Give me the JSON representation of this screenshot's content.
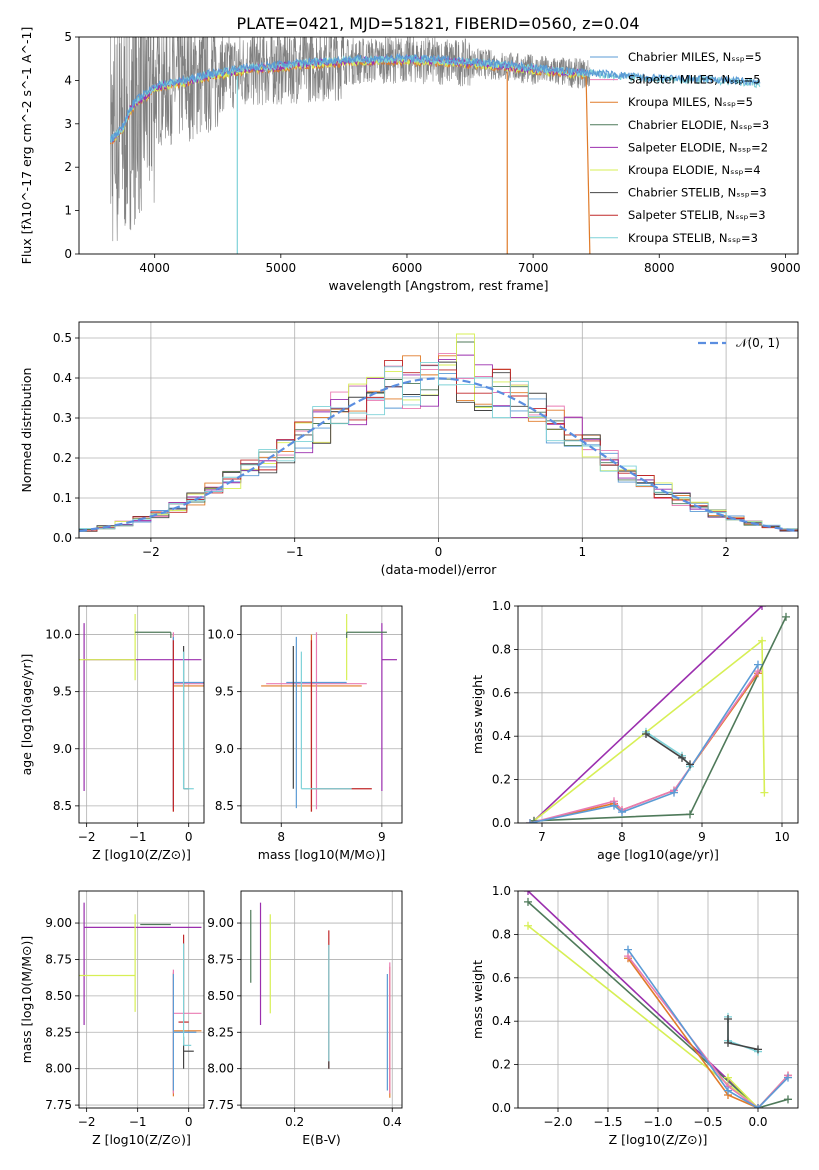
{
  "figure": {
    "title": "PLATE=0421, MJD=51821, FIBERID=0560, z=0.04"
  },
  "colors": {
    "chabrier_miles": "#5b9bd5",
    "salpeter_miles": "#e97bb3",
    "kroupa_miles": "#e07b2a",
    "chabrier_elodie": "#4f7a5a",
    "salpeter_elodie": "#9b2fae",
    "kroupa_elodie": "#d7ef55",
    "chabrier_stelib": "#444444",
    "salpeter_stelib": "#c0282a",
    "kroupa_stelib": "#7fd2d8",
    "observed": "#808080",
    "normal": "#5b8ee0",
    "grid": "#b0b0b0"
  },
  "chart_data": [
    {
      "id": "spectrum",
      "type": "line",
      "xlabel": "wavelength [Angstrom, rest frame]",
      "ylabel": "Flux [fλ10^-17 erg cm^-2 s^-1 A^-1]",
      "xlim": [
        3400,
        9100
      ],
      "ylim": [
        0,
        5
      ],
      "xticks": [
        4000,
        5000,
        6000,
        7000,
        8000,
        9000
      ],
      "yticks": [
        0,
        1,
        2,
        3,
        4,
        5
      ],
      "grid": false,
      "legend_position": "top-right",
      "legend": [
        {
          "label": "Chabrier MILES, N_SSP=5",
          "color_key": "chabrier_miles"
        },
        {
          "label": "Salpeter MILES, N_SSP=5",
          "color_key": "salpeter_miles"
        },
        {
          "label": "Kroupa MILES, N_SSP=5",
          "color_key": "kroupa_miles"
        },
        {
          "label": "Chabrier ELODIE, N_SSP=3",
          "color_key": "chabrier_elodie"
        },
        {
          "label": "Salpeter ELODIE, N_SSP=2",
          "color_key": "salpeter_elodie"
        },
        {
          "label": "Kroupa ELODIE, N_SSP=4",
          "color_key": "kroupa_elodie"
        },
        {
          "label": "Chabrier STELIB, N_SSP=3",
          "color_key": "chabrier_stelib"
        },
        {
          "label": "Salpeter STELIB, N_SSP=3",
          "color_key": "salpeter_stelib"
        },
        {
          "label": "Kroupa STELIB, N_SSP=3",
          "color_key": "kroupa_stelib"
        }
      ],
      "model_curve": {
        "x": [
          3650,
          3700,
          3750,
          3800,
          3850,
          3900,
          3950,
          4000,
          4100,
          4200,
          4300,
          4400,
          4500,
          4600,
          4700,
          4800,
          4900,
          5000,
          5200,
          5400,
          5600,
          5800,
          6000,
          6200,
          6400,
          6600,
          6800,
          7000,
          7200,
          7400,
          7600,
          7800,
          8000,
          8200,
          8400,
          8600,
          8800
        ],
        "y": [
          2.6,
          2.75,
          2.9,
          3.3,
          3.5,
          3.6,
          3.7,
          3.85,
          3.9,
          3.95,
          4.0,
          4.1,
          4.15,
          4.2,
          4.25,
          4.28,
          4.3,
          4.33,
          4.38,
          4.42,
          4.45,
          4.47,
          4.48,
          4.45,
          4.42,
          4.38,
          4.32,
          4.25,
          4.2,
          4.15,
          4.1,
          4.05,
          4.0,
          4.0,
          3.98,
          3.95,
          3.9
        ]
      }
    },
    {
      "id": "residuals",
      "type": "histogram",
      "xlabel": "(data-model)/error",
      "ylabel": "Normed distribution",
      "xlim": [
        -2.5,
        2.5
      ],
      "ylim": [
        0,
        0.54
      ],
      "xticks": [
        -2,
        -1,
        0,
        1,
        2
      ],
      "yticks": [
        0.0,
        0.1,
        0.2,
        0.3,
        0.4,
        0.5
      ],
      "grid": true,
      "legend_position": "top-right",
      "legend": [
        {
          "label": "N(0,1)",
          "color_key": "normal"
        }
      ],
      "bin_width": 0.125,
      "x_start": -2.5
    },
    {
      "id": "age_vs_Z",
      "type": "errorbar",
      "xlabel": "Z [log10(Z/Z⊙)]",
      "ylabel": "age [log10(age/yr)]",
      "xlim": [
        -2.15,
        0.3
      ],
      "ylim": [
        8.35,
        10.25
      ],
      "xticks": [
        -2,
        -1,
        0
      ],
      "yticks": [
        8.5,
        9.0,
        9.5,
        10.0
      ],
      "grid": true,
      "series": [
        {
          "color_key": "salpeter_elodie",
          "x": -2.05,
          "y": 9.78,
          "xerr": [
            0.0,
            2.3
          ],
          "yerr": [
            1.15,
            0.32
          ]
        },
        {
          "color_key": "kroupa_elodie",
          "x": -1.05,
          "y": 9.78,
          "xerr": [
            1.1,
            0.0
          ],
          "yerr": [
            0.18,
            0.4
          ]
        },
        {
          "color_key": "chabrier_elodie",
          "x": -0.35,
          "y": 10.02,
          "xerr": [
            0.7,
            0.0
          ],
          "yerr": [
            0.05,
            0.0
          ]
        },
        {
          "color_key": "kroupa_miles",
          "x": -0.3,
          "y": 9.55,
          "xerr": [
            0.0,
            0.6
          ],
          "yerr": [
            1.1,
            0.45
          ]
        },
        {
          "color_key": "salpeter_miles",
          "x": -0.3,
          "y": 9.57,
          "xerr": [
            0.0,
            0.6
          ],
          "yerr": [
            1.1,
            0.45
          ]
        },
        {
          "color_key": "chabrier_miles",
          "x": -0.3,
          "y": 9.58,
          "xerr": [
            0.0,
            0.6
          ],
          "yerr": [
            1.1,
            0.4
          ]
        },
        {
          "color_key": "salpeter_stelib",
          "x": -0.3,
          "y": 8.65,
          "xerr": [
            0.0,
            0.0
          ],
          "yerr": [
            0.2,
            1.3
          ]
        },
        {
          "color_key": "chabrier_stelib",
          "x": -0.1,
          "y": 8.65,
          "xerr": [
            0.0,
            0.1
          ],
          "yerr": [
            0.0,
            1.25
          ]
        },
        {
          "color_key": "kroupa_stelib",
          "x": -0.1,
          "y": 8.65,
          "xerr": [
            0.0,
            0.2
          ],
          "yerr": [
            0.0,
            1.2
          ]
        }
      ]
    },
    {
      "id": "age_vs_mass",
      "type": "errorbar",
      "xlabel": "mass [log10(M/M⊙)]",
      "ylabel": "",
      "xlim": [
        7.6,
        9.2
      ],
      "ylim": [
        8.35,
        10.25
      ],
      "xticks": [
        8,
        9
      ],
      "yticks": [
        8.5,
        9.0,
        9.5,
        10.0
      ],
      "grid": true,
      "series": [
        {
          "color_key": "salpeter_elodie",
          "x": 9.0,
          "y": 9.78,
          "xerr": [
            0.0,
            0.15
          ],
          "yerr": [
            1.15,
            0.32
          ]
        },
        {
          "color_key": "kroupa_elodie",
          "x": 8.65,
          "y": 9.78,
          "xerr": [
            0.0,
            0.0
          ],
          "yerr": [
            0.18,
            0.4
          ]
        },
        {
          "color_key": "chabrier_elodie",
          "x": 8.65,
          "y": 10.02,
          "xerr": [
            0.0,
            0.4
          ],
          "yerr": [
            0.05,
            0.0
          ]
        },
        {
          "color_key": "kroupa_miles",
          "x": 8.3,
          "y": 9.55,
          "xerr": [
            0.5,
            0.5
          ],
          "yerr": [
            1.1,
            0.45
          ]
        },
        {
          "color_key": "salpeter_miles",
          "x": 8.35,
          "y": 9.57,
          "xerr": [
            0.5,
            0.5
          ],
          "yerr": [
            1.1,
            0.45
          ]
        },
        {
          "color_key": "chabrier_miles",
          "x": 8.15,
          "y": 9.58,
          "xerr": [
            0.1,
            0.5
          ],
          "yerr": [
            1.1,
            0.4
          ]
        },
        {
          "color_key": "salpeter_stelib",
          "x": 8.3,
          "y": 8.65,
          "xerr": [
            0.0,
            0.6
          ],
          "yerr": [
            0.2,
            1.3
          ]
        },
        {
          "color_key": "chabrier_stelib",
          "x": 8.12,
          "y": 8.65,
          "xerr": [
            0.0,
            0.0
          ],
          "yerr": [
            0.0,
            1.25
          ]
        },
        {
          "color_key": "kroupa_stelib",
          "x": 8.2,
          "y": 8.65,
          "xerr": [
            0.0,
            0.5
          ],
          "yerr": [
            0.0,
            1.2
          ]
        }
      ]
    },
    {
      "id": "weight_vs_age",
      "type": "line",
      "xlabel": "age [log10(age/yr)]",
      "ylabel": "mass weight",
      "xlim": [
        6.7,
        10.2
      ],
      "ylim": [
        0,
        1.0
      ],
      "xticks": [
        7,
        8,
        9,
        10
      ],
      "yticks": [
        0.0,
        0.2,
        0.4,
        0.6,
        0.8,
        1.0
      ],
      "grid": true,
      "series": [
        {
          "color_key": "salpeter_elodie",
          "x": [
            6.9,
            9.75
          ],
          "y": [
            0.01,
            1.0
          ]
        },
        {
          "color_key": "kroupa_elodie",
          "x": [
            6.9,
            9.75,
            9.78
          ],
          "y": [
            0.01,
            0.84,
            0.14
          ]
        },
        {
          "color_key": "chabrier_elodie",
          "x": [
            6.9,
            8.85,
            10.05
          ],
          "y": [
            0.01,
            0.04,
            0.95
          ]
        },
        {
          "color_key": "kroupa_miles",
          "x": [
            6.85,
            7.9,
            8.0,
            8.65,
            9.7
          ],
          "y": [
            0.0,
            0.09,
            0.06,
            0.15,
            0.69
          ]
        },
        {
          "color_key": "salpeter_miles",
          "x": [
            6.85,
            7.9,
            8.0,
            8.65,
            9.7
          ],
          "y": [
            0.0,
            0.1,
            0.06,
            0.15,
            0.7
          ]
        },
        {
          "color_key": "chabrier_miles",
          "x": [
            6.85,
            7.9,
            8.0,
            8.65,
            9.7
          ],
          "y": [
            0.0,
            0.08,
            0.05,
            0.14,
            0.73
          ]
        },
        {
          "color_key": "kroupa_stelib",
          "x": [
            8.3,
            8.75,
            8.85
          ],
          "y": [
            0.42,
            0.31,
            0.26
          ]
        },
        {
          "color_key": "chabrier_stelib",
          "x": [
            8.3,
            8.75,
            8.85
          ],
          "y": [
            0.41,
            0.3,
            0.27
          ]
        }
      ]
    },
    {
      "id": "mass_vs_Z",
      "type": "errorbar",
      "xlabel": "Z [log10(Z/Z⊙)]",
      "ylabel": "mass [log10(M/M⊙)]",
      "xlim": [
        -2.15,
        0.3
      ],
      "ylim": [
        7.73,
        9.22
      ],
      "xticks": [
        -2,
        -1,
        0
      ],
      "yticks": [
        7.75,
        8.0,
        8.25,
        8.5,
        8.75,
        9.0
      ],
      "grid": true,
      "series": [
        {
          "color_key": "salpeter_elodie",
          "x": -2.05,
          "y": 8.97,
          "xerr": [
            0.0,
            2.3
          ],
          "yerr": [
            0.67,
            0.17
          ]
        },
        {
          "color_key": "kroupa_elodie",
          "x": -1.05,
          "y": 8.64,
          "xerr": [
            1.1,
            0.0
          ],
          "yerr": [
            0.25,
            0.42
          ]
        },
        {
          "color_key": "chabrier_elodie",
          "x": -0.95,
          "y": 8.99,
          "xerr": [
            0.0,
            0.6
          ],
          "yerr": [
            0.0,
            0.0
          ]
        },
        {
          "color_key": "kroupa_miles",
          "x": -0.3,
          "y": 8.26,
          "xerr": [
            0.0,
            0.55
          ],
          "yerr": [
            0.45,
            0.4
          ]
        },
        {
          "color_key": "salpeter_miles",
          "x": -0.3,
          "y": 8.38,
          "xerr": [
            0.0,
            0.55
          ],
          "yerr": [
            0.55,
            0.3
          ]
        },
        {
          "color_key": "chabrier_miles",
          "x": -0.3,
          "y": 8.25,
          "xerr": [
            0.0,
            0.45
          ],
          "yerr": [
            0.4,
            0.4
          ]
        },
        {
          "color_key": "salpeter_stelib",
          "x": -0.1,
          "y": 8.32,
          "xerr": [
            0.1,
            0.1
          ],
          "yerr": [
            0.0,
            0.6
          ]
        },
        {
          "color_key": "chabrier_stelib",
          "x": -0.1,
          "y": 8.12,
          "xerr": [
            0.0,
            0.2
          ],
          "yerr": [
            0.12,
            0.1
          ]
        },
        {
          "color_key": "kroupa_stelib",
          "x": -0.1,
          "y": 8.16,
          "xerr": [
            0.0,
            0.15
          ],
          "yerr": [
            0.0,
            0.7
          ]
        }
      ]
    },
    {
      "id": "mass_vs_EBV",
      "type": "errorbar",
      "xlabel": "E(B-V)",
      "ylabel": "",
      "xlim": [
        0.09,
        0.42
      ],
      "ylim": [
        7.73,
        9.22
      ],
      "xticks": [
        0.2,
        0.4
      ],
      "yticks": [
        7.75,
        8.0,
        8.25,
        8.5,
        8.75,
        9.0
      ],
      "grid": true,
      "series": [
        {
          "color_key": "chabrier_elodie",
          "x": 0.11,
          "y": 8.84,
          "xerr": [
            0.0,
            0.0
          ],
          "yerr": [
            0.25,
            0.25
          ]
        },
        {
          "color_key": "salpeter_elodie",
          "x": 0.13,
          "y": 8.72,
          "xerr": [
            0.0,
            0.0
          ],
          "yerr": [
            0.42,
            0.42
          ]
        },
        {
          "color_key": "kroupa_elodie",
          "x": 0.15,
          "y": 8.72,
          "xerr": [
            0.0,
            0.0
          ],
          "yerr": [
            0.34,
            0.34
          ]
        },
        {
          "color_key": "salpeter_stelib",
          "x": 0.27,
          "y": 8.5,
          "xerr": [
            0.0,
            0.0
          ],
          "yerr": [
            0.5,
            0.45
          ]
        },
        {
          "color_key": "kroupa_stelib",
          "x": 0.27,
          "y": 8.45,
          "xerr": [
            0.0,
            0.0
          ],
          "yerr": [
            0.4,
            0.4
          ]
        },
        {
          "color_key": "chabrier_stelib",
          "x": 0.27,
          "y": 8.0,
          "xerr": [
            0.0,
            0.0
          ],
          "yerr": [
            0.0,
            0.05
          ]
        },
        {
          "color_key": "kroupa_miles",
          "x": 0.395,
          "y": 8.25,
          "xerr": [
            0.0,
            0.0
          ],
          "yerr": [
            0.45,
            0.45
          ]
        },
        {
          "color_key": "salpeter_miles",
          "x": 0.395,
          "y": 8.38,
          "xerr": [
            0.0,
            0.0
          ],
          "yerr": [
            0.55,
            0.35
          ]
        },
        {
          "color_key": "chabrier_miles",
          "x": 0.39,
          "y": 8.25,
          "xerr": [
            0.0,
            0.0
          ],
          "yerr": [
            0.4,
            0.4
          ]
        }
      ]
    },
    {
      "id": "weight_vs_Z",
      "type": "line",
      "xlabel": "Z [log10(Z/Z⊙)]",
      "ylabel": "mass weight",
      "xlim": [
        -2.4,
        0.4
      ],
      "ylim": [
        0,
        1.0
      ],
      "xticks": [
        -2.0,
        -1.5,
        -1.0,
        -0.5,
        0.0
      ],
      "yticks": [
        0.0,
        0.2,
        0.4,
        0.6,
        0.8,
        1.0
      ],
      "grid": true,
      "series": [
        {
          "color_key": "salpeter_elodie",
          "x": [
            -2.3,
            0.0
          ],
          "y": [
            1.0,
            0.0
          ]
        },
        {
          "color_key": "chabrier_elodie",
          "x": [
            -2.3,
            0.0,
            0.3
          ],
          "y": [
            0.95,
            0.0,
            0.04
          ]
        },
        {
          "color_key": "kroupa_elodie",
          "x": [
            -2.3,
            0.0,
            -0.3
          ],
          "y": [
            0.84,
            0.0,
            0.14
          ]
        },
        {
          "color_key": "kroupa_miles",
          "x": [
            -1.3,
            -0.3,
            0.0,
            0.3
          ],
          "y": [
            0.69,
            0.06,
            0.0,
            0.15
          ]
        },
        {
          "color_key": "salpeter_miles",
          "x": [
            -1.3,
            -0.3,
            0.0,
            0.3
          ],
          "y": [
            0.7,
            0.1,
            0.0,
            0.15
          ]
        },
        {
          "color_key": "chabrier_miles",
          "x": [
            -1.3,
            -0.3,
            0.0,
            0.3
          ],
          "y": [
            0.73,
            0.08,
            0.0,
            0.14
          ]
        },
        {
          "color_key": "kroupa_stelib",
          "x": [
            -0.3,
            -0.3,
            0.0
          ],
          "y": [
            0.42,
            0.31,
            0.26
          ]
        },
        {
          "color_key": "chabrier_stelib",
          "x": [
            -0.3,
            -0.3,
            0.0
          ],
          "y": [
            0.41,
            0.3,
            0.27
          ]
        }
      ]
    }
  ]
}
